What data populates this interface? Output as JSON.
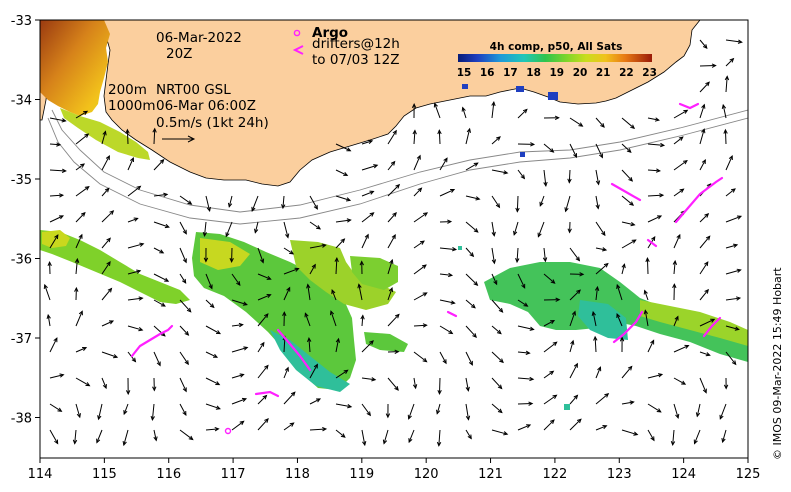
{
  "map": {
    "date_line": "06-Mar-2022",
    "time_line": "20Z",
    "depth_shallow": "200m",
    "depth_deep": "1000m",
    "product": "NRT00 GSL",
    "product_time": "06-Mar 06:00Z",
    "scale_label": "0.5m/s (1kt 24h)",
    "argo_label": "Argo",
    "drifters_label": "drifters@12h",
    "drifters_until": "to 07/03 12Z",
    "colorbar_title": "4h comp, p50, All Sats",
    "colorbar_ticks": [
      "15",
      "16",
      "17",
      "18",
      "19",
      "20",
      "21",
      "22",
      "23"
    ],
    "credit": "© IMOS 09-Mar-2022 15:49 Hobart",
    "lon_ticks": [
      "114",
      "115",
      "116",
      "117",
      "118",
      "119",
      "120",
      "121",
      "122",
      "123",
      "124",
      "125"
    ],
    "lat_ticks": [
      "-33",
      "-34",
      "-35",
      "-36",
      "-37",
      "-38"
    ],
    "colors": {
      "land": "#fbcf9e",
      "drifter": "#ff20ff",
      "coast_line": "#000000"
    }
  }
}
